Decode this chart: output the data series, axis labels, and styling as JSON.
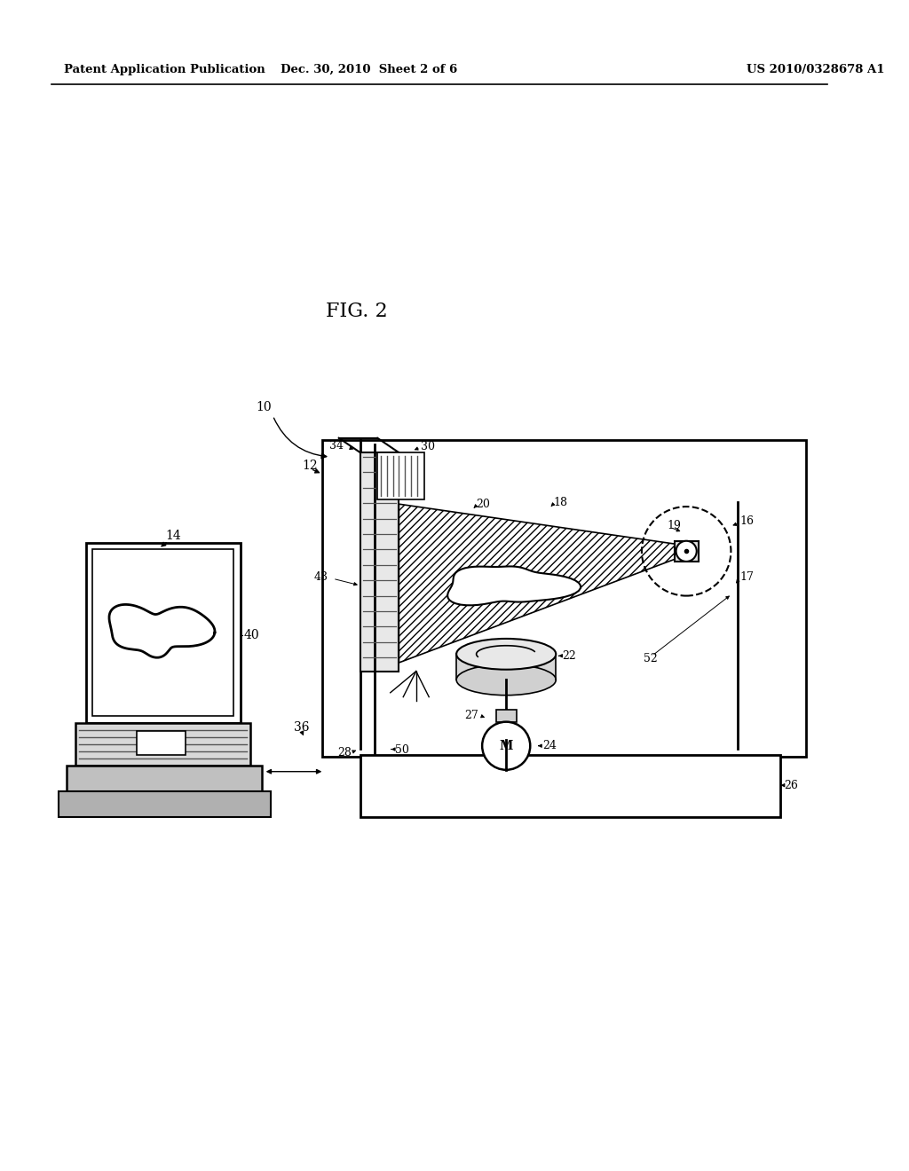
{
  "header_left": "Patent Application Publication",
  "header_center": "Dec. 30, 2010  Sheet 2 of 6",
  "header_right": "US 2010/0328678 A1",
  "background_color": "#ffffff",
  "line_color": "#000000",
  "fig_title": "FIG. 2"
}
